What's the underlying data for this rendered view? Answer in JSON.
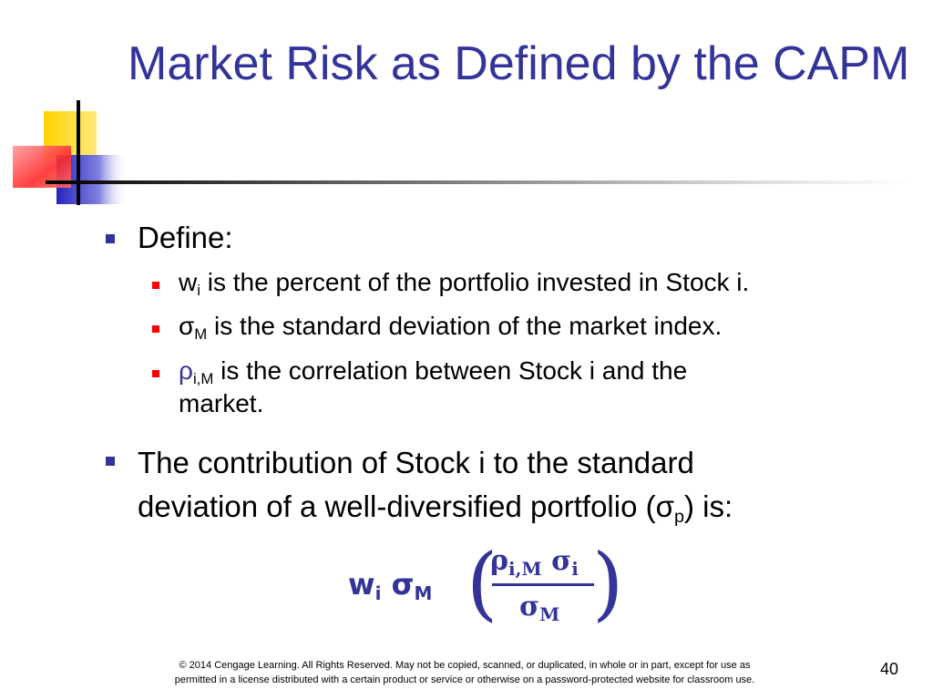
{
  "title": "Market Risk as Defined by the CAPM",
  "colors": {
    "title": "#333399",
    "bullet1": "#333399",
    "bullet2": "#ff0000",
    "deco_yellow": "#ffd400",
    "deco_blue": "#3333cc",
    "deco_red": "#ff3333"
  },
  "bullets": {
    "define": "Define:",
    "wi": {
      "sym": "w",
      "sub": "i",
      "text": " is the percent of the portfolio invested in Stock i."
    },
    "sigma": {
      "sym": "σ",
      "sub": "M",
      "text": " is the standard deviation of the market index."
    },
    "rho": {
      "sym": "ρ",
      "sub": "i,M",
      "text_line1": " is the correlation between Stock i and the",
      "text_line2": "market."
    },
    "contribution": {
      "line1": "The contribution of Stock i to the standard",
      "line2_pre": "deviation of a well-diversified portfolio (σ",
      "line2_sub": "p",
      "line2_post": ") is:"
    }
  },
  "formula": {
    "w": "w",
    "w_sub": "i",
    "sigma": "σ",
    "sigma_sub": "M",
    "num_rho": "ρ",
    "num_rho_sub": "i,M",
    "num_sigma": " σ",
    "num_sigma_sub": "i",
    "den_sigma": "σ",
    "den_sigma_sub": "M"
  },
  "footer": {
    "line1": "© 2014 Cengage Learning. All Rights Reserved. May not be copied, scanned, or duplicated, in whole or in part, except for use as",
    "line2": "permitted in a license distributed with a certain product or service or otherwise on a password-protected website for classroom use."
  },
  "page_number": "40"
}
